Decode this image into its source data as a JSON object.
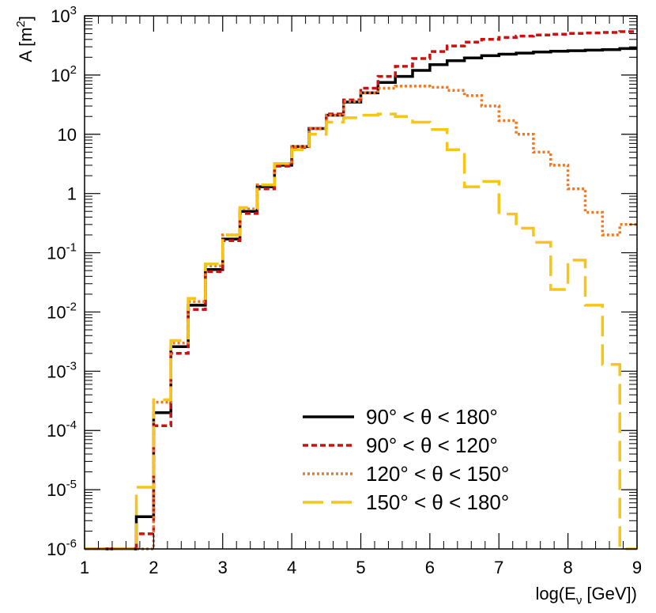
{
  "chart_data": {
    "type": "line",
    "style": "step-histogram",
    "xlabel": {
      "main": "log(E",
      "sub": "ν",
      "tail": " [GeV])"
    },
    "ylabel": {
      "main": "A [m",
      "sup": "2",
      "tail": "]"
    },
    "xlim": [
      1,
      9
    ],
    "ylim_log10": [
      -6,
      3
    ],
    "yscale": "log",
    "x_ticks": [
      "1",
      "2",
      "3",
      "4",
      "5",
      "6",
      "7",
      "8",
      "9"
    ],
    "y_ticks": [
      {
        "base": "10",
        "exp": "-6",
        "plain": ""
      },
      {
        "base": "10",
        "exp": "-5",
        "plain": ""
      },
      {
        "base": "10",
        "exp": "-4",
        "plain": ""
      },
      {
        "base": "10",
        "exp": "-3",
        "plain": ""
      },
      {
        "base": "10",
        "exp": "-2",
        "plain": ""
      },
      {
        "base": "10",
        "exp": "-1",
        "plain": ""
      },
      {
        "base": "",
        "exp": "",
        "plain": "1"
      },
      {
        "base": "",
        "exp": "",
        "plain": "10"
      },
      {
        "base": "10",
        "exp": "2",
        "plain": ""
      },
      {
        "base": "10",
        "exp": "3",
        "plain": ""
      }
    ],
    "bin_edges": [
      1.0,
      1.25,
      1.5,
      1.75,
      2.0,
      2.25,
      2.5,
      2.75,
      3.0,
      3.25,
      3.5,
      3.75,
      4.0,
      4.25,
      4.5,
      4.75,
      5.0,
      5.25,
      5.5,
      5.75,
      6.0,
      6.25,
      6.5,
      6.75,
      7.0,
      7.25,
      7.5,
      7.75,
      8.0,
      8.25,
      8.5,
      8.75,
      9.0
    ],
    "legend_position": "bottom-right",
    "series": [
      {
        "name": "90° < θ < 180°",
        "color": "#000000",
        "dash": "solid",
        "values": [
          1e-06,
          1e-06,
          1e-06,
          3.5e-06,
          0.0002,
          0.0026,
          0.013,
          0.052,
          0.17,
          0.5,
          1.3,
          3.0,
          6.2,
          12.5,
          21,
          35,
          50,
          75,
          95,
          120,
          150,
          175,
          195,
          212,
          225,
          235,
          245,
          252,
          258,
          263,
          268,
          280
        ]
      },
      {
        "name": "90° < θ < 120°",
        "color": "#cc1111",
        "dash": "dashed",
        "values": [
          1e-06,
          1e-06,
          1e-06,
          1.8e-06,
          0.00012,
          0.002,
          0.011,
          0.048,
          0.16,
          0.46,
          1.2,
          2.9,
          6.0,
          12.5,
          22,
          38,
          60,
          95,
          140,
          190,
          250,
          310,
          360,
          400,
          430,
          455,
          475,
          490,
          505,
          515,
          525,
          540
        ]
      },
      {
        "name": "120° < θ < 150°",
        "color": "#f07820",
        "dash": "dotted",
        "values": [
          1e-06,
          1e-06,
          1e-06,
          1e-06,
          0.0003,
          0.003,
          0.015,
          0.06,
          0.2,
          0.55,
          1.4,
          3.2,
          6.2,
          12.5,
          21,
          36,
          50,
          60,
          65,
          65,
          62,
          55,
          45,
          30,
          17,
          10,
          5,
          3,
          1.2,
          0.48,
          0.2,
          0.3
        ]
      },
      {
        "name": "150° < θ < 180°",
        "color": "#f5c518",
        "dash": "longdash",
        "values": [
          1e-06,
          1e-06,
          1e-06,
          1.1e-05,
          0.00033,
          0.0033,
          0.017,
          0.065,
          0.2,
          0.58,
          1.4,
          3.2,
          5.5,
          10,
          16,
          19,
          21,
          22,
          20,
          16,
          12,
          5.5,
          1.3,
          1.6,
          0.45,
          0.26,
          0.15,
          0.024,
          0.075,
          0.013,
          0.0013,
          1e-06
        ]
      }
    ]
  }
}
